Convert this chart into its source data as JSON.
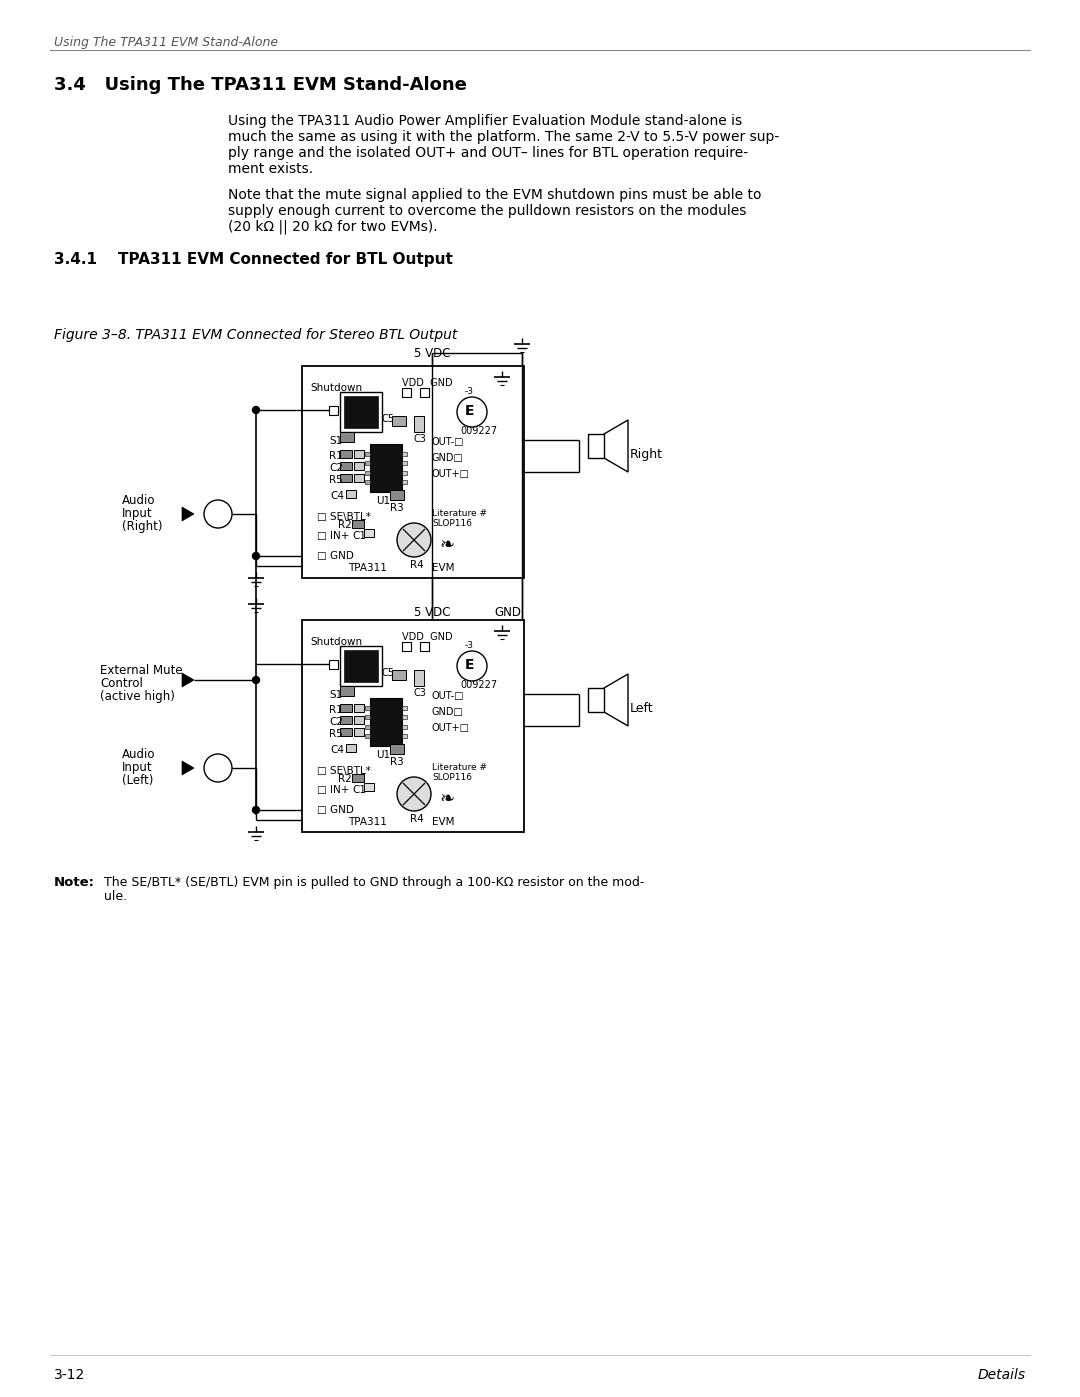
{
  "page_header": "Using The TPA311 EVM Stand-Alone",
  "section_number": "3.4",
  "section_title": "Using The TPA311 EVM Stand-Alone",
  "para1_lines": [
    "Using the TPA311 Audio Power Amplifier Evaluation Module stand-alone is",
    "much the same as using it with the platform. The same 2-V to 5.5-V power sup-",
    "ply range and the isolated OUT+ and OUT– lines for BTL operation require-",
    "ment exists."
  ],
  "para2_lines": [
    "Note that the mute signal applied to the EVM shutdown pins must be able to",
    "supply enough current to overcome the pulldown resistors on the modules",
    "(20 kΩ || 20 kΩ for two EVMs)."
  ],
  "subsection_number": "3.4.1",
  "subsection_title": "TPA311 EVM Connected for BTL Output",
  "figure_caption": "Figure 3–8. TPA311 EVM Connected for Stereo BTL Output",
  "note_bold": "Note:",
  "note_line1": "The SE/BTL* (SE/BTL) EVM pin is pulled to GND through a 100-KΩ resistor on the mod-",
  "note_line2": "ule.",
  "page_number": "3-12",
  "page_footer": "Details",
  "bg_color": "#ffffff",
  "text_color": "#000000"
}
